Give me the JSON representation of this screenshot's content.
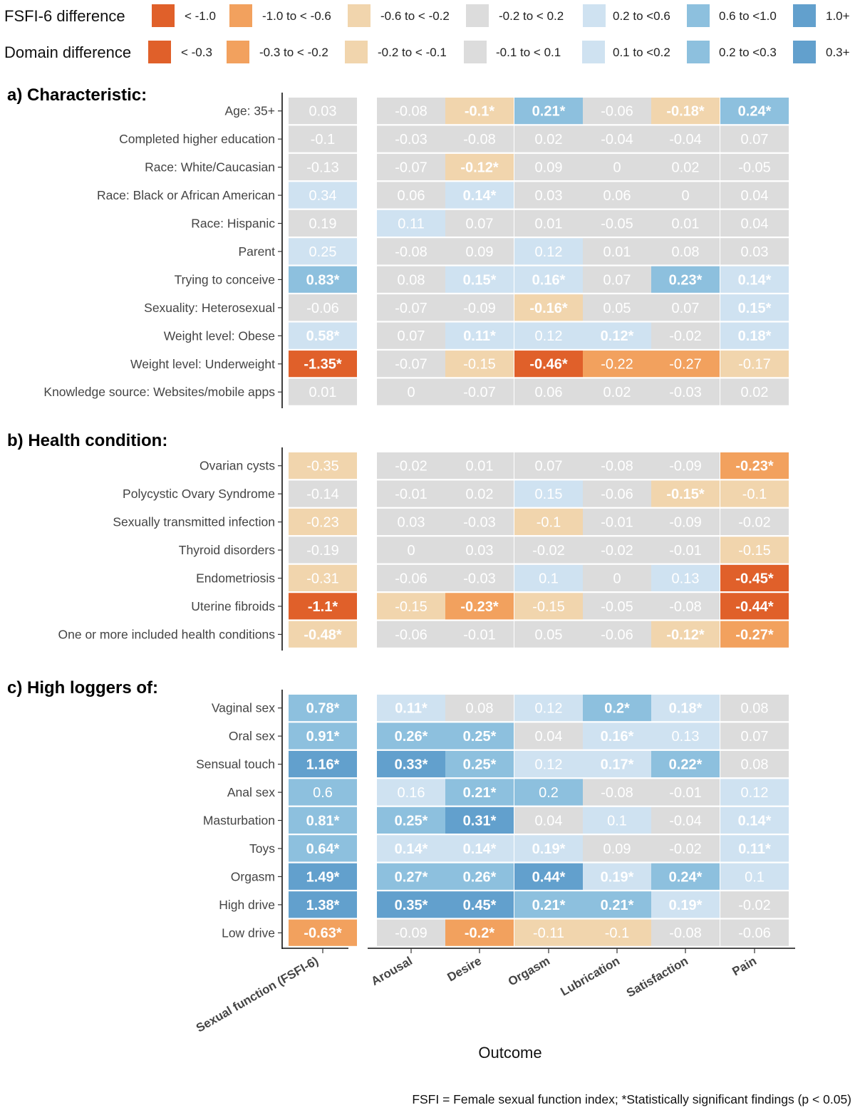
{
  "chart_data": {
    "type": "heatmap",
    "xlabel": "Outcome",
    "caption": "FSFI = Female sexual function index; *Statistically significant findings (p < 0.05)",
    "columns": [
      "Sexual function (FSFI-6)",
      "Arousal",
      "Desire",
      "Orgasm",
      "Lubrication",
      "Satisfaction",
      "Pain"
    ],
    "legend": {
      "fsfi": {
        "title": "FSFI-6 difference",
        "bins": [
          {
            "label": "< -1.0",
            "color": "#e0602a"
          },
          {
            "label": "-1.0 to < -0.6",
            "color": "#f2a15e"
          },
          {
            "label": "-0.6 to < -0.2",
            "color": "#f1d5ad"
          },
          {
            "label": "-0.2 to < 0.2",
            "color": "#dcdcdc"
          },
          {
            "label": "0.2 to <0.6",
            "color": "#cfe2f1"
          },
          {
            "label": "0.6 to <1.0",
            "color": "#8dc0de"
          },
          {
            "label": "1.0+",
            "color": "#62a0cd"
          }
        ]
      },
      "domain": {
        "title": "Domain difference",
        "bins": [
          {
            "label": "< -0.3",
            "color": "#e0602a"
          },
          {
            "label": "-0.3 to < -0.2",
            "color": "#f2a15e"
          },
          {
            "label": "-0.2 to < -0.1",
            "color": "#f1d5ad"
          },
          {
            "label": "-0.1 to < 0.1",
            "color": "#dcdcdc"
          },
          {
            "label": "0.1 to <0.2",
            "color": "#cfe2f1"
          },
          {
            "label": "0.2 to <0.3",
            "color": "#8dc0de"
          },
          {
            "label": "0.3+",
            "color": "#62a0cd"
          }
        ]
      }
    },
    "panels": [
      {
        "title": "a) Characteristic:",
        "rows": [
          {
            "label": "Age: 35+",
            "values": [
              "0.03",
              "-0.08",
              "-0.1*",
              "0.21*",
              "-0.06",
              "-0.18*",
              "0.24*"
            ]
          },
          {
            "label": "Completed higher education",
            "values": [
              "-0.1",
              "-0.03",
              "-0.08",
              "0.02",
              "-0.04",
              "-0.04",
              "0.07"
            ]
          },
          {
            "label": "Race: White/Caucasian",
            "values": [
              "-0.13",
              "-0.07",
              "-0.12*",
              "0.09",
              "0",
              "0.02",
              "-0.05"
            ]
          },
          {
            "label": "Race: Black or African American",
            "values": [
              "0.34",
              "0.06",
              "0.14*",
              "0.03",
              "0.06",
              "0",
              "0.04"
            ]
          },
          {
            "label": "Race: Hispanic",
            "values": [
              "0.19",
              "0.11",
              "0.07",
              "0.01",
              "-0.05",
              "0.01",
              "0.04"
            ]
          },
          {
            "label": "Parent",
            "values": [
              "0.25",
              "-0.08",
              "0.09",
              "0.12",
              "0.01",
              "0.08",
              "0.03"
            ]
          },
          {
            "label": "Trying to conceive",
            "values": [
              "0.83*",
              "0.08",
              "0.15*",
              "0.16*",
              "0.07",
              "0.23*",
              "0.14*"
            ]
          },
          {
            "label": "Sexuality: Heterosexual",
            "values": [
              "-0.06",
              "-0.07",
              "-0.09",
              "-0.16*",
              "0.05",
              "0.07",
              "0.15*"
            ]
          },
          {
            "label": "Weight level: Obese",
            "values": [
              "0.58*",
              "0.07",
              "0.11*",
              "0.12",
              "0.12*",
              "-0.02",
              "0.18*"
            ]
          },
          {
            "label": "Weight level: Underweight",
            "values": [
              "-1.35*",
              "-0.07",
              "-0.15",
              "-0.46*",
              "-0.22",
              "-0.27",
              "-0.17"
            ]
          },
          {
            "label": "Knowledge source: Websites/mobile apps",
            "values": [
              "0.01",
              "0",
              "-0.07",
              "0.06",
              "0.02",
              "-0.03",
              "0.02"
            ]
          }
        ]
      },
      {
        "title": "b) Health condition:",
        "rows": [
          {
            "label": "Ovarian cysts",
            "values": [
              "-0.35",
              "-0.02",
              "0.01",
              "0.07",
              "-0.08",
              "-0.09",
              "-0.23*"
            ]
          },
          {
            "label": "Polycystic Ovary Syndrome",
            "values": [
              "-0.14",
              "-0.01",
              "0.02",
              "0.15",
              "-0.06",
              "-0.15*",
              "-0.1"
            ]
          },
          {
            "label": "Sexually transmitted infection",
            "values": [
              "-0.23",
              "0.03",
              "-0.03",
              "-0.1",
              "-0.01",
              "-0.09",
              "-0.02"
            ]
          },
          {
            "label": "Thyroid disorders",
            "values": [
              "-0.19",
              "0",
              "0.03",
              "-0.02",
              "-0.02",
              "-0.01",
              "-0.15"
            ]
          },
          {
            "label": "Endometriosis",
            "values": [
              "-0.31",
              "-0.06",
              "-0.03",
              "0.1",
              "0",
              "0.13",
              "-0.45*"
            ]
          },
          {
            "label": "Uterine fibroids",
            "values": [
              "-1.1*",
              "-0.15",
              "-0.23*",
              "-0.15",
              "-0.05",
              "-0.08",
              "-0.44*"
            ]
          },
          {
            "label": "One or more included health conditions",
            "values": [
              "-0.48*",
              "-0.06",
              "-0.01",
              "0.05",
              "-0.06",
              "-0.12*",
              "-0.27*"
            ]
          }
        ]
      },
      {
        "title": "c) High loggers of:",
        "rows": [
          {
            "label": "Vaginal sex",
            "values": [
              "0.78*",
              "0.11*",
              "0.08",
              "0.12",
              "0.2*",
              "0.18*",
              "0.08"
            ]
          },
          {
            "label": "Oral sex",
            "values": [
              "0.91*",
              "0.26*",
              "0.25*",
              "0.04",
              "0.16*",
              "0.13",
              "0.07"
            ]
          },
          {
            "label": "Sensual touch",
            "values": [
              "1.16*",
              "0.33*",
              "0.25*",
              "0.12",
              "0.17*",
              "0.22*",
              "0.08"
            ]
          },
          {
            "label": "Anal sex",
            "values": [
              "0.6",
              "0.16",
              "0.21*",
              "0.2",
              "-0.08",
              "-0.01",
              "0.12"
            ]
          },
          {
            "label": "Masturbation",
            "values": [
              "0.81*",
              "0.25*",
              "0.31*",
              "0.04",
              "0.1",
              "-0.04",
              "0.14*"
            ]
          },
          {
            "label": "Toys",
            "values": [
              "0.64*",
              "0.14*",
              "0.14*",
              "0.19*",
              "0.09",
              "-0.02",
              "0.11*"
            ]
          },
          {
            "label": "Orgasm",
            "values": [
              "1.49*",
              "0.27*",
              "0.26*",
              "0.44*",
              "0.19*",
              "0.24*",
              "0.1"
            ]
          },
          {
            "label": "High drive",
            "values": [
              "1.38*",
              "0.35*",
              "0.45*",
              "0.21*",
              "0.21*",
              "0.19*",
              "-0.02"
            ]
          },
          {
            "label": "Low drive",
            "values": [
              "-0.63*",
              "-0.09",
              "-0.2*",
              "-0.11",
              "-0.1",
              "-0.08",
              "-0.06"
            ]
          }
        ]
      }
    ]
  }
}
